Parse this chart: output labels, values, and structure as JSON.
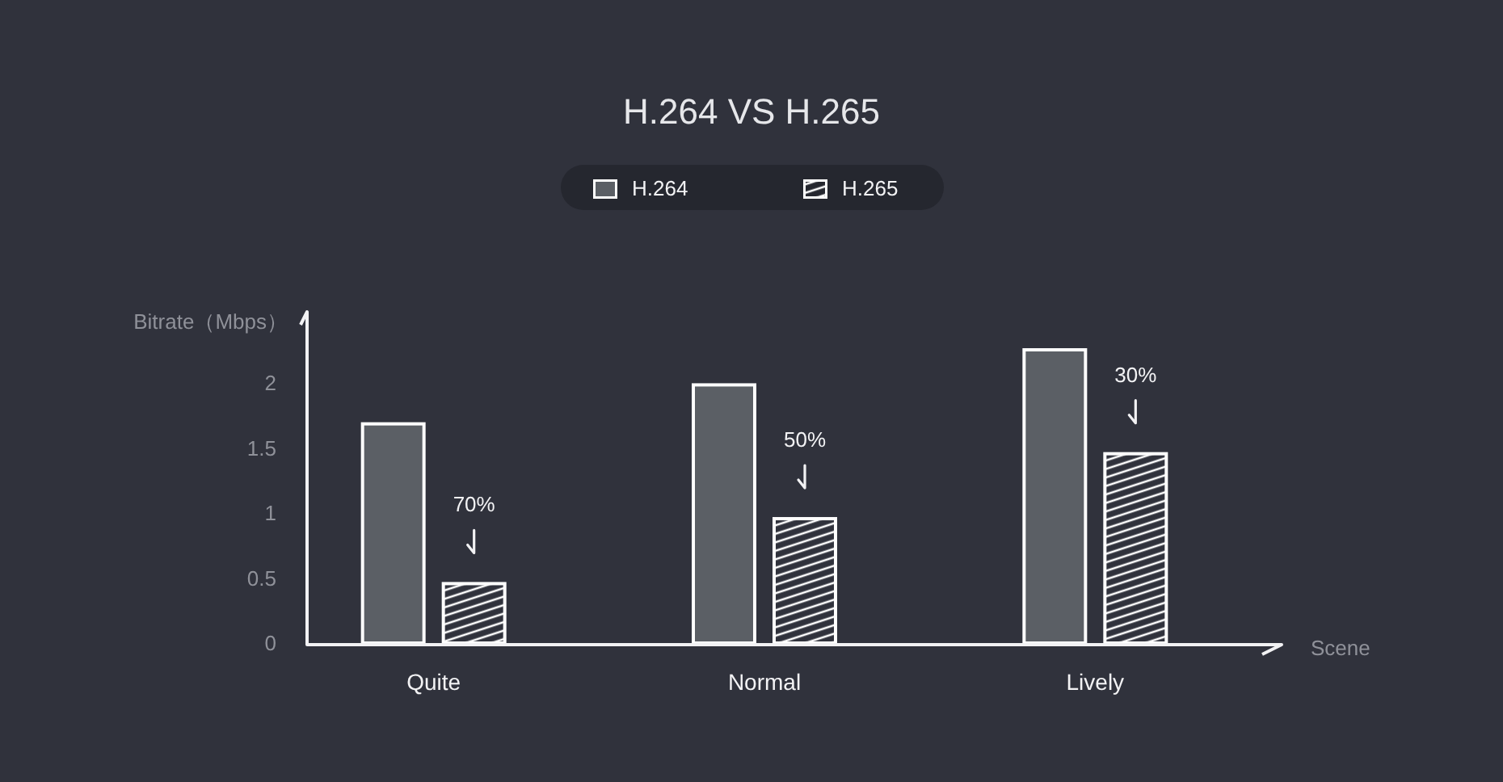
{
  "chart_data": {
    "type": "bar",
    "title": "H.264 VS H.265",
    "xlabel": "Scene",
    "ylabel": "Bitrate（Mbps）",
    "categories": [
      "Quite",
      "Normal",
      "Lively"
    ],
    "series": [
      {
        "name": "H.264",
        "color": "#5b5f65",
        "values": [
          1.7,
          2.0,
          2.27
        ]
      },
      {
        "name": "H.265",
        "color": "#ffffff",
        "values": [
          0.47,
          0.97,
          1.47
        ]
      }
    ],
    "ylim": [
      0,
      2.55
    ],
    "yticks": [
      0,
      0.5,
      1,
      1.5,
      2
    ],
    "legend": "top",
    "annotations": [
      "70%",
      "50%",
      "30%"
    ]
  }
}
